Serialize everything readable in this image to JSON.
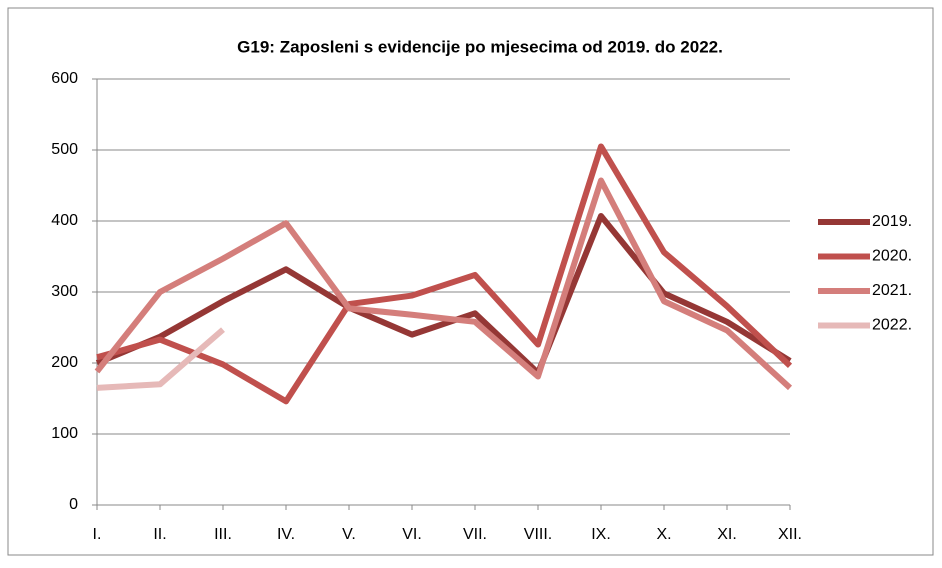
{
  "chart_data": {
    "type": "line",
    "title": "G19: Zaposleni s evidencije po mjesecima od 2019. do 2022.",
    "categories": [
      "I.",
      "II.",
      "III.",
      "IV.",
      "V.",
      "VI.",
      "VII.",
      "VIII.",
      "IX.",
      "X.",
      "XI.",
      "XII."
    ],
    "series": [
      {
        "name": "2019.",
        "color": "#953735",
        "values": [
          200,
          237,
          287,
          332,
          278,
          240,
          270,
          186,
          407,
          298,
          258,
          203
        ]
      },
      {
        "name": "2020.",
        "color": "#c0504d",
        "values": [
          208,
          233,
          198,
          146,
          283,
          295,
          324,
          226,
          505,
          356,
          280,
          196
        ]
      },
      {
        "name": "2021.",
        "color": "#d47e7b",
        "values": [
          188,
          300,
          347,
          397,
          277,
          268,
          258,
          181,
          457,
          287,
          246,
          165
        ]
      },
      {
        "name": "2022.",
        "color": "#e6b9b8",
        "values": [
          165,
          170,
          247,
          null,
          null,
          null,
          null,
          null,
          null,
          null,
          null,
          null
        ]
      }
    ],
    "ylim": [
      0,
      600
    ],
    "yticks": [
      0,
      100,
      200,
      300,
      400,
      500,
      600
    ],
    "grid": true,
    "legend": "right"
  }
}
